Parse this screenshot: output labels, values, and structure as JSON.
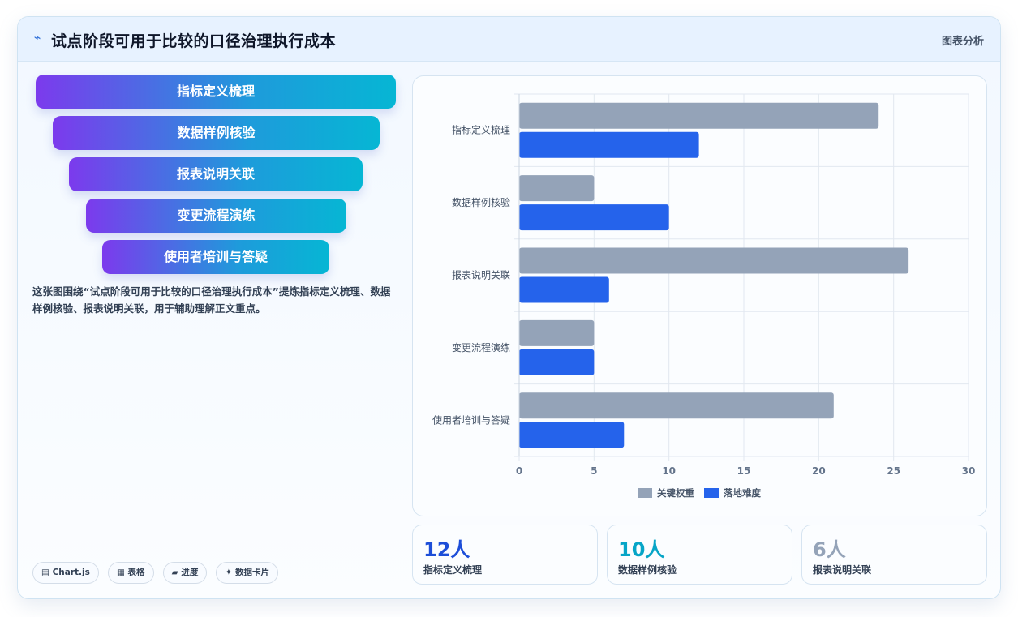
{
  "header": {
    "icon": "trend-icon",
    "icon_glyph": "⌁",
    "title": "试点阶段可用于比较的口径治理执行成本",
    "link": "图表分析"
  },
  "funnel": [
    "指标定义梳理",
    "数据样例核验",
    "报表说明关联",
    "变更流程演练",
    "使用者培训与答疑"
  ],
  "description": "这张图围绕“试点阶段可用于比较的口径治理执行成本”提炼指标定义梳理、数据样例核验、报表说明关联，用于辅助理解正文重点。",
  "tags": [
    "▤ Chart.js",
    "▦ 表格",
    "▰ 进度",
    "✦ 数据卡片"
  ],
  "colors": {
    "series_1": "#94a3b8",
    "series_2": "#2563eb",
    "stat_1": "#1d4ed8",
    "stat_2": "#06a5c7",
    "stat_3": "#94a3b8"
  },
  "chart_data": {
    "type": "bar",
    "orientation": "horizontal",
    "categories": [
      "指标定义梳理",
      "数据样例核验",
      "报表说明关联",
      "变更流程演练",
      "使用者培训与答疑"
    ],
    "series": [
      {
        "name": "关键权重",
        "values": [
          24,
          5,
          26,
          5,
          21
        ]
      },
      {
        "name": "落地难度",
        "values": [
          12,
          10,
          6,
          5,
          7
        ]
      }
    ],
    "xlim": [
      0,
      30
    ],
    "xticks": [
      "0",
      "5",
      "10",
      "15",
      "20",
      "25",
      "30"
    ],
    "grid": true,
    "legend": "bottom"
  },
  "stats": [
    {
      "value": "12人",
      "label": "指标定义梳理"
    },
    {
      "value": "10人",
      "label": "数据样例核验"
    },
    {
      "value": "6人",
      "label": "报表说明关联"
    }
  ]
}
